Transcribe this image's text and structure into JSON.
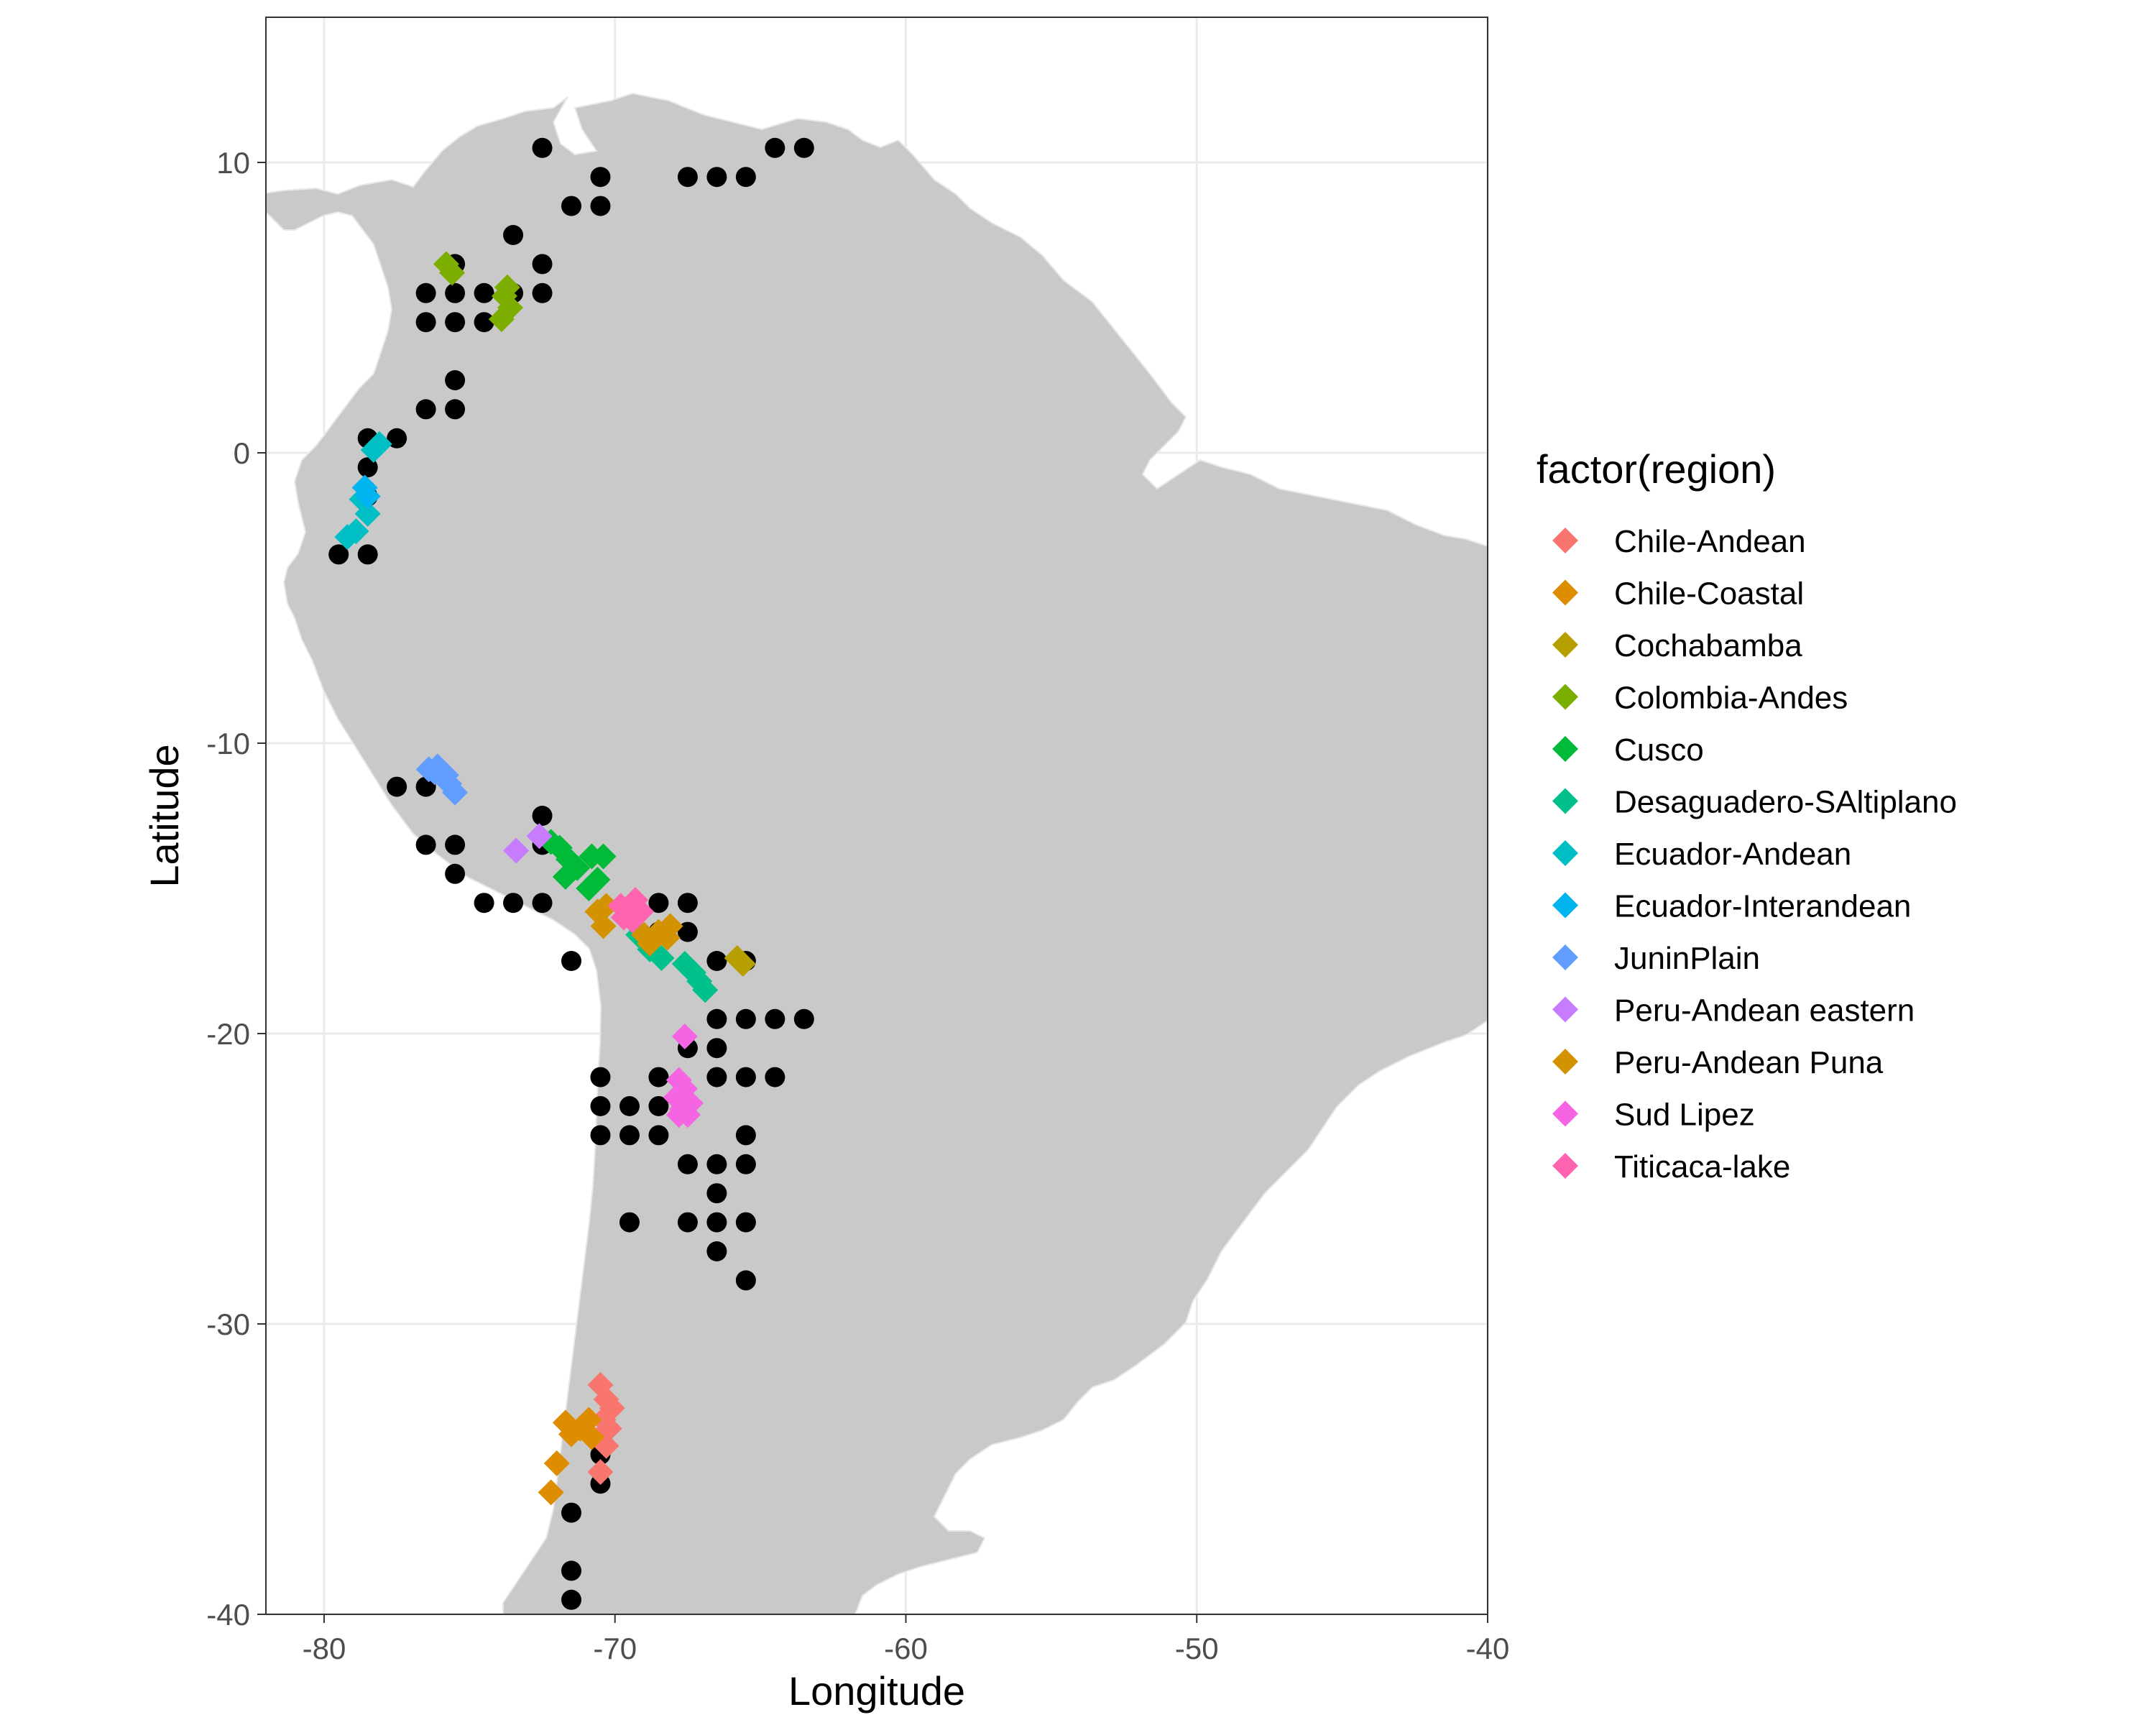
{
  "chart_data": {
    "type": "scatter",
    "xlabel": "Longitude",
    "ylabel": "Latitude",
    "xlim": [
      -82,
      -40
    ],
    "ylim": [
      -40,
      15
    ],
    "x_ticks": [
      "-80",
      "-70",
      "-60",
      "-50",
      "-40"
    ],
    "y_ticks": [
      "10",
      "0",
      "-10",
      "-20",
      "-30",
      "-40"
    ],
    "grid": true,
    "land_color": "#c9c9c9",
    "legend": {
      "title": "factor(region)",
      "placement": "right"
    },
    "regions": [
      {
        "name": "Chile-Andean",
        "color": "#F8766D",
        "points": [
          [
            -70.5,
            -32.1
          ],
          [
            -70.3,
            -32.6
          ],
          [
            -70.1,
            -32.9
          ],
          [
            -70.4,
            -33.3
          ],
          [
            -70.2,
            -33.6
          ],
          [
            -70.5,
            -33.9
          ],
          [
            -70.3,
            -34.2
          ],
          [
            -70.5,
            -35.1
          ]
        ]
      },
      {
        "name": "Chile-Coastal",
        "color": "#DE8C00",
        "points": [
          [
            -71.7,
            -33.4
          ],
          [
            -71.5,
            -33.8
          ],
          [
            -71.2,
            -33.6
          ],
          [
            -70.9,
            -33.3
          ],
          [
            -70.8,
            -33.9
          ],
          [
            -72.0,
            -34.8
          ],
          [
            -72.2,
            -35.8
          ]
        ]
      },
      {
        "name": "Cochabamba",
        "color": "#B79F00",
        "points": [
          [
            -65.8,
            -17.4
          ],
          [
            -65.6,
            -17.6
          ]
        ]
      },
      {
        "name": "Colombia-Andes",
        "color": "#7CAE00",
        "points": [
          [
            -75.8,
            6.5
          ],
          [
            -75.6,
            6.2
          ],
          [
            -73.8,
            5.4
          ],
          [
            -73.6,
            5.0
          ],
          [
            -73.9,
            4.6
          ],
          [
            -73.7,
            5.7
          ]
        ]
      },
      {
        "name": "Cusco",
        "color": "#00BA38",
        "points": [
          [
            -72.2,
            -13.4
          ],
          [
            -71.9,
            -13.6
          ],
          [
            -71.6,
            -14.0
          ],
          [
            -71.3,
            -14.3
          ],
          [
            -71.7,
            -14.6
          ],
          [
            -70.8,
            -13.9
          ],
          [
            -70.4,
            -13.9
          ],
          [
            -70.6,
            -14.7
          ],
          [
            -70.9,
            -15.0
          ]
        ]
      },
      {
        "name": "Desaguadero-SAltiplano",
        "color": "#00C08B",
        "points": [
          [
            -69.2,
            -16.6
          ],
          [
            -68.8,
            -17.1
          ],
          [
            -68.4,
            -17.4
          ],
          [
            -67.6,
            -17.6
          ],
          [
            -67.3,
            -17.9
          ],
          [
            -67.1,
            -18.2
          ],
          [
            -66.9,
            -18.5
          ]
        ]
      },
      {
        "name": "Ecuador-Andean",
        "color": "#00BFC4",
        "points": [
          [
            -79.2,
            -2.9
          ],
          [
            -78.9,
            -2.7
          ],
          [
            -78.5,
            -2.1
          ],
          [
            -78.7,
            -1.6
          ],
          [
            -78.3,
            0.1
          ],
          [
            -78.1,
            0.3
          ]
        ]
      },
      {
        "name": "Ecuador-Interandean",
        "color": "#00B4F0",
        "points": [
          [
            -78.6,
            -1.2
          ],
          [
            -78.5,
            -1.5
          ]
        ]
      },
      {
        "name": "JuninPlain",
        "color": "#619CFF",
        "points": [
          [
            -76.4,
            -10.9
          ],
          [
            -76.1,
            -10.8
          ],
          [
            -75.8,
            -11.1
          ],
          [
            -75.7,
            -11.4
          ],
          [
            -75.5,
            -11.7
          ],
          [
            -76.2,
            -11.0
          ]
        ]
      },
      {
        "name": "Peru-Andean eastern",
        "color": "#C77CFF",
        "points": [
          [
            -73.4,
            -13.7
          ],
          [
            -72.6,
            -13.2
          ]
        ]
      },
      {
        "name": "Peru-Andean Puna",
        "color": "#D39200",
        "points": [
          [
            -70.6,
            -15.8
          ],
          [
            -70.3,
            -15.6
          ],
          [
            -70.4,
            -16.3
          ],
          [
            -69.0,
            -16.6
          ],
          [
            -68.8,
            -16.9
          ],
          [
            -68.5,
            -16.5
          ],
          [
            -68.2,
            -16.7
          ],
          [
            -68.1,
            -16.3
          ]
        ]
      },
      {
        "name": "Sud Lipez",
        "color": "#F564E3",
        "points": [
          [
            -67.6,
            -20.1
          ],
          [
            -67.8,
            -21.6
          ],
          [
            -67.6,
            -21.9
          ],
          [
            -67.9,
            -22.2
          ],
          [
            -67.4,
            -22.4
          ],
          [
            -67.7,
            -22.6
          ],
          [
            -67.5,
            -22.8
          ],
          [
            -67.8,
            -22.8
          ]
        ]
      },
      {
        "name": "Titicaca-lake",
        "color": "#FF64B0",
        "points": [
          [
            -69.8,
            -15.6
          ],
          [
            -69.5,
            -15.7
          ],
          [
            -69.3,
            -15.4
          ],
          [
            -69.7,
            -16.0
          ],
          [
            -69.4,
            -16.1
          ],
          [
            -69.1,
            -15.8
          ],
          [
            -69.6,
            -15.9
          ]
        ]
      }
    ],
    "black_points": [
      [
        -72.5,
        10.5
      ],
      [
        -70.5,
        9.5
      ],
      [
        -70.5,
        8.5
      ],
      [
        -71.5,
        8.5
      ],
      [
        -67.5,
        9.5
      ],
      [
        -66.5,
        9.5
      ],
      [
        -65.5,
        9.5
      ],
      [
        -64.5,
        10.5
      ],
      [
        -63.5,
        10.5
      ],
      [
        -73.5,
        7.5
      ],
      [
        -72.5,
        6.5
      ],
      [
        -75.5,
        6.5
      ],
      [
        -72.5,
        5.5
      ],
      [
        -73.5,
        5.5
      ],
      [
        -74.5,
        5.5
      ],
      [
        -75.5,
        5.5
      ],
      [
        -76.5,
        5.5
      ],
      [
        -74.5,
        4.5
      ],
      [
        -75.5,
        4.5
      ],
      [
        -76.5,
        4.5
      ],
      [
        -75.5,
        2.5
      ],
      [
        -75.5,
        1.5
      ],
      [
        -76.5,
        1.5
      ],
      [
        -77.5,
        0.5
      ],
      [
        -78.5,
        0.5
      ],
      [
        -78.5,
        -0.5
      ],
      [
        -78.5,
        -1.5
      ],
      [
        -79.5,
        -3.5
      ],
      [
        -78.5,
        -3.5
      ],
      [
        -77.5,
        -11.5
      ],
      [
        -76.5,
        -11.5
      ],
      [
        -76.5,
        -13.5
      ],
      [
        -75.5,
        -13.5
      ],
      [
        -75.5,
        -14.5
      ],
      [
        -72.5,
        -12.5
      ],
      [
        -72.5,
        -13.5
      ],
      [
        -74.5,
        -15.5
      ],
      [
        -73.5,
        -15.5
      ],
      [
        -72.5,
        -15.5
      ],
      [
        -71.5,
        -17.5
      ],
      [
        -68.5,
        -15.5
      ],
      [
        -67.5,
        -15.5
      ],
      [
        -68.5,
        -16.5
      ],
      [
        -67.5,
        -16.5
      ],
      [
        -66.5,
        -17.5
      ],
      [
        -65.5,
        -17.5
      ],
      [
        -66.5,
        -19.5
      ],
      [
        -65.5,
        -19.5
      ],
      [
        -64.5,
        -19.5
      ],
      [
        -63.5,
        -19.5
      ],
      [
        -67.5,
        -20.5
      ],
      [
        -66.5,
        -20.5
      ],
      [
        -70.5,
        -21.5
      ],
      [
        -68.5,
        -21.5
      ],
      [
        -66.5,
        -21.5
      ],
      [
        -65.5,
        -21.5
      ],
      [
        -64.5,
        -21.5
      ],
      [
        -70.5,
        -22.5
      ],
      [
        -69.5,
        -22.5
      ],
      [
        -68.5,
        -22.5
      ],
      [
        -68.5,
        -23.5
      ],
      [
        -70.5,
        -23.5
      ],
      [
        -69.5,
        -23.5
      ],
      [
        -65.5,
        -23.5
      ],
      [
        -67.5,
        -24.5
      ],
      [
        -66.5,
        -24.5
      ],
      [
        -65.5,
        -24.5
      ],
      [
        -66.5,
        -25.5
      ],
      [
        -69.5,
        -26.5
      ],
      [
        -67.5,
        -26.5
      ],
      [
        -66.5,
        -26.5
      ],
      [
        -65.5,
        -26.5
      ],
      [
        -66.5,
        -27.5
      ],
      [
        -65.5,
        -28.5
      ],
      [
        -70.5,
        -34.5
      ],
      [
        -70.5,
        -35.5
      ],
      [
        -71.5,
        -36.5
      ],
      [
        -71.5,
        -38.5
      ],
      [
        -71.5,
        -39.5
      ]
    ]
  }
}
